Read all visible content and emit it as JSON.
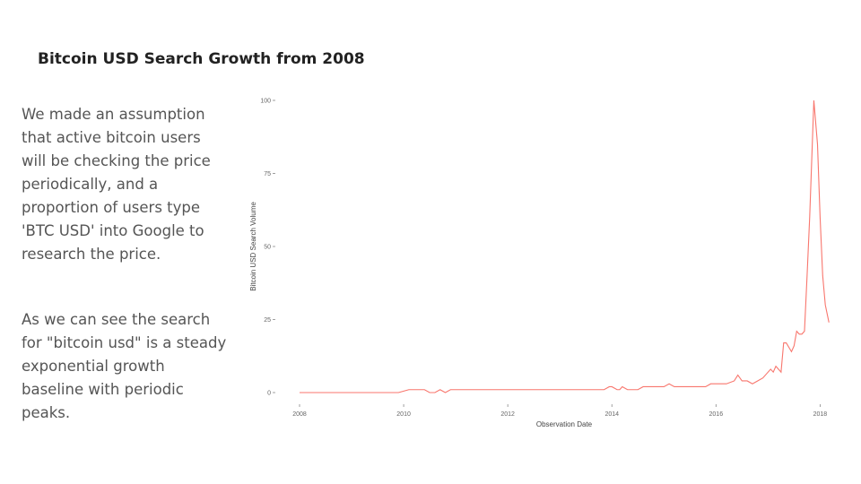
{
  "slide": {
    "title": "Bitcoin USD Search Growth from 2008",
    "paragraphs": [
      "We made an assumption that active bitcoin users will be checking the price periodically, and a proportion of users type 'BTC USD' into Google to research the price.",
      "As we can see the search for \"bitcoin usd\" is a steady exponential growth baseline with periodic peaks."
    ]
  },
  "chart_data": {
    "type": "line",
    "title": "",
    "xlabel": "Observation Date",
    "ylabel": "Bitcoin USD Search Volume",
    "xlim": [
      2008.0,
      2018.2
    ],
    "ylim": [
      0,
      100
    ],
    "x_ticks": [
      2008,
      2010,
      2012,
      2014,
      2016,
      2018
    ],
    "y_ticks": [
      0,
      25,
      50,
      75,
      100
    ],
    "grid": false,
    "legend": "none",
    "line_color": "#f8766d",
    "series": [
      {
        "x": [
          2008.0,
          2008.5,
          2009.0,
          2009.5,
          2009.9,
          2010.0,
          2010.1,
          2010.4,
          2010.5,
          2010.6,
          2010.7,
          2010.8,
          2010.9,
          2011.0,
          2011.5,
          2012.0,
          2012.5,
          2013.0,
          2013.5,
          2013.85,
          2013.95,
          2014.0,
          2014.1,
          2014.15,
          2014.2,
          2014.3,
          2014.5,
          2014.6,
          2014.7,
          2015.0,
          2015.1,
          2015.2,
          2015.5,
          2015.8,
          2015.9,
          2016.0,
          2016.2,
          2016.35,
          2016.42,
          2016.5,
          2016.6,
          2016.7,
          2016.8,
          2016.9,
          2017.0,
          2017.05,
          2017.1,
          2017.15,
          2017.2,
          2017.25,
          2017.3,
          2017.35,
          2017.45,
          2017.5,
          2017.55,
          2017.6,
          2017.65,
          2017.7,
          2017.75,
          2017.8,
          2017.88,
          2017.95,
          2018.0,
          2018.05,
          2018.1,
          2018.17
        ],
        "y": [
          0,
          0,
          0,
          0,
          0,
          0.5,
          1,
          1,
          0,
          0,
          1,
          0,
          1,
          1,
          1,
          1,
          1,
          1,
          1,
          1,
          2,
          2,
          1,
          1,
          2,
          1,
          1,
          2,
          2,
          2,
          3,
          2,
          2,
          2,
          3,
          3,
          3,
          4,
          6,
          4,
          4,
          3,
          4,
          5,
          7,
          8,
          7,
          9,
          8,
          7,
          17,
          17,
          14,
          16,
          21,
          20,
          20,
          21,
          40,
          60,
          100,
          85,
          60,
          40,
          30,
          24
        ]
      }
    ]
  }
}
